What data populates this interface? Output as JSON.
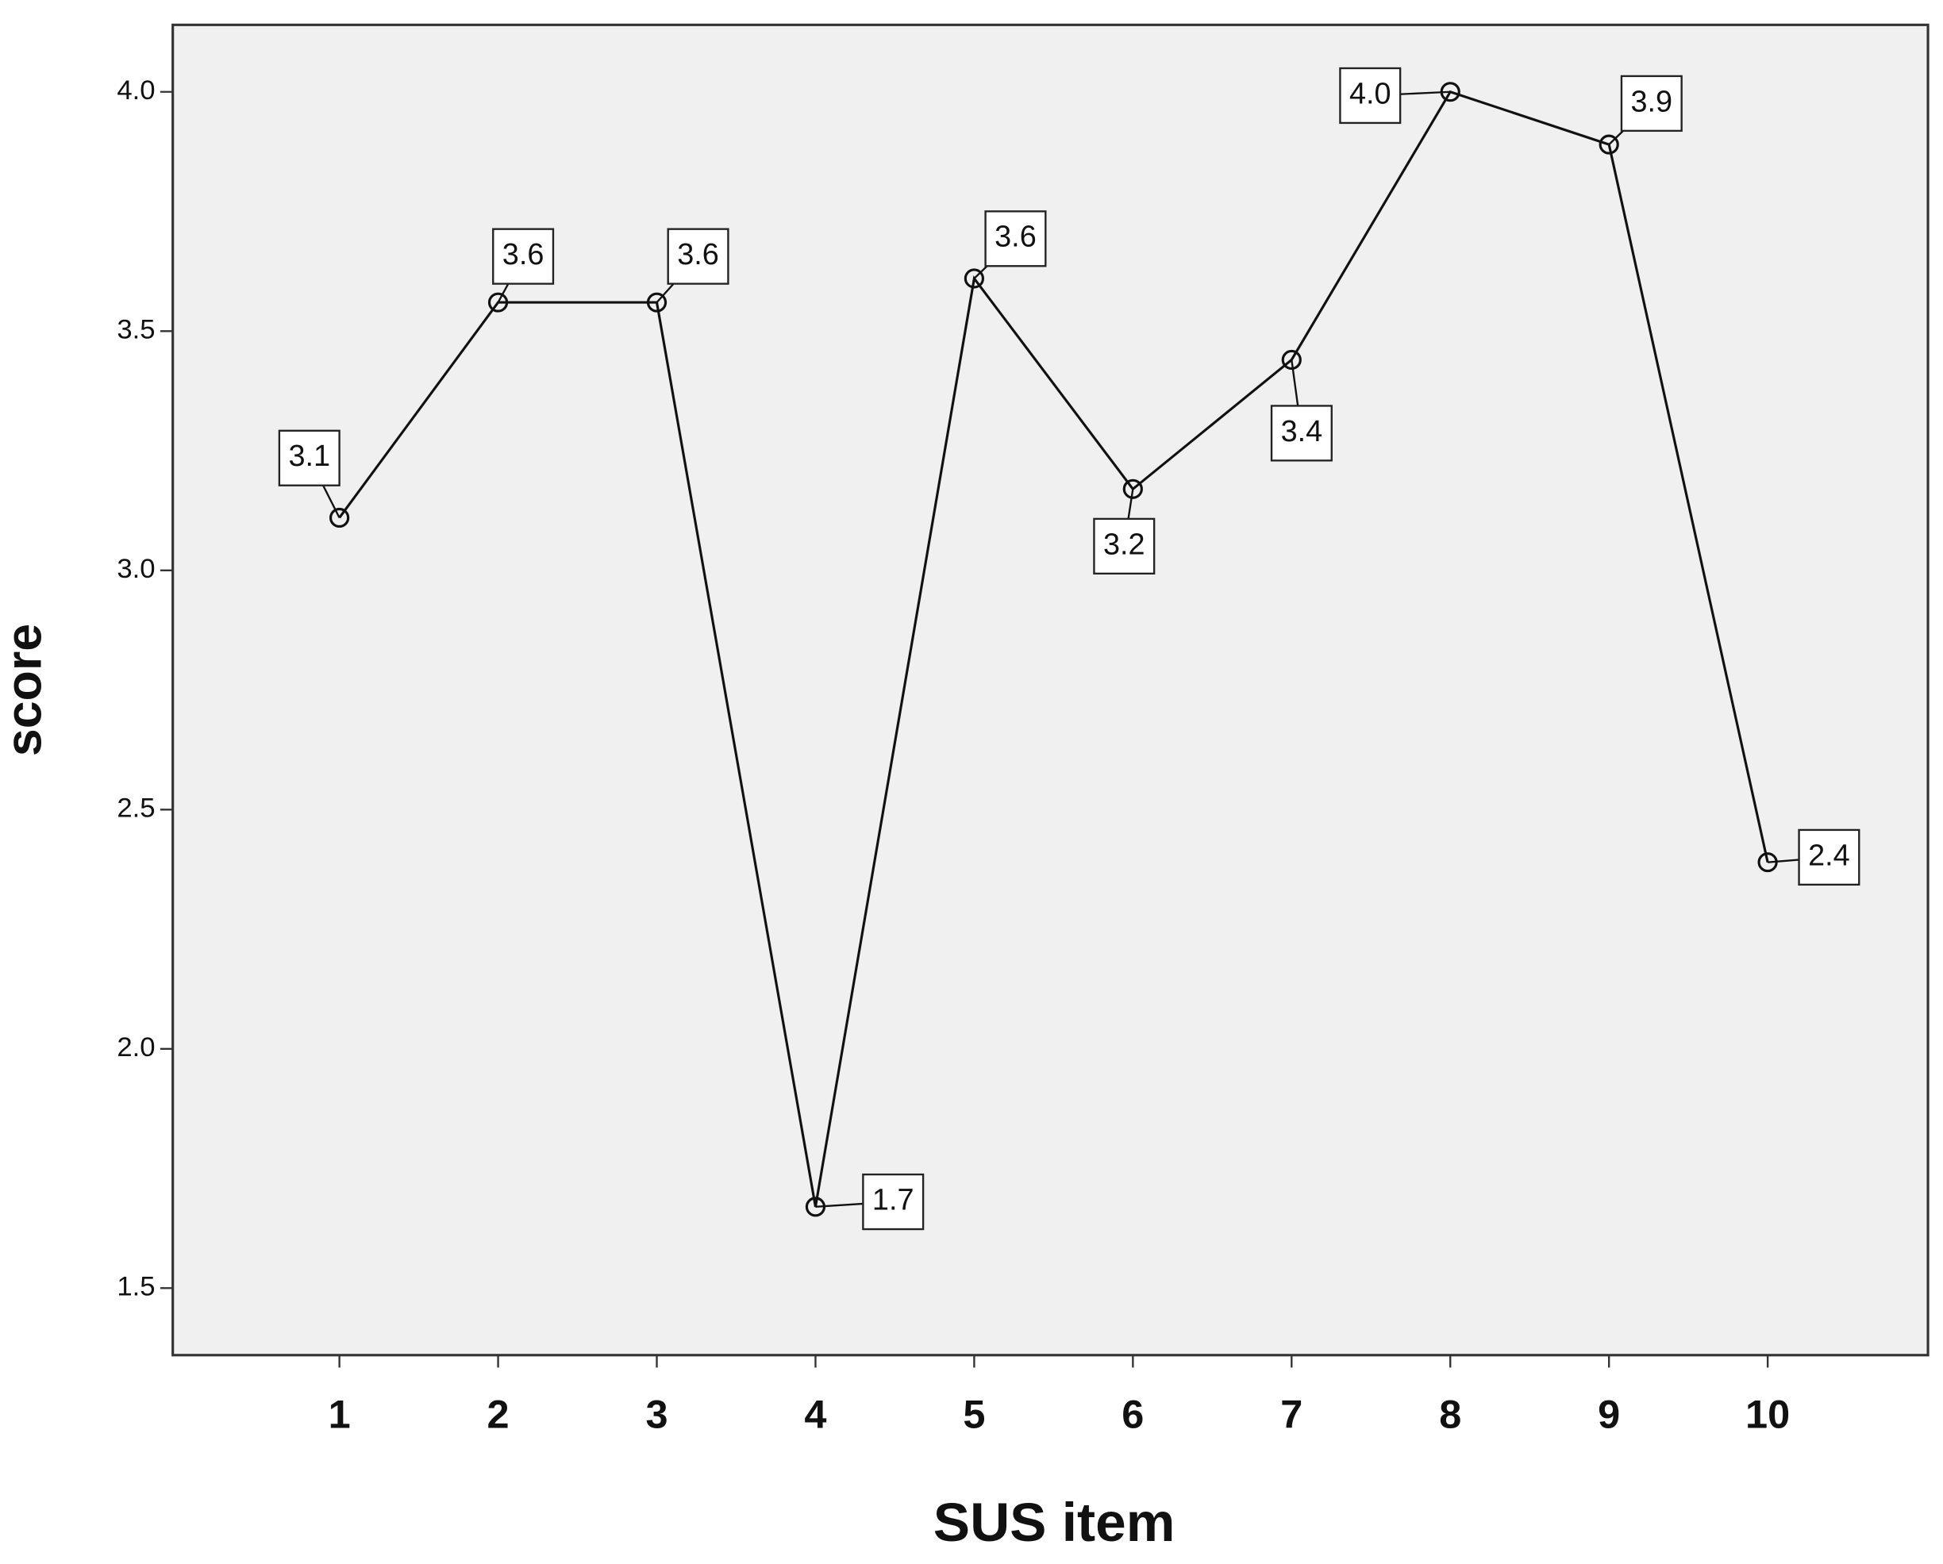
{
  "chart_data": {
    "type": "line",
    "x_label": "SUS item",
    "y_label": "score",
    "categories": [
      "1",
      "2",
      "3",
      "4",
      "5",
      "6",
      "7",
      "8",
      "9",
      "10"
    ],
    "values": [
      3.11,
      3.56,
      3.56,
      1.67,
      3.61,
      3.17,
      3.44,
      4.0,
      3.89,
      2.39
    ],
    "value_labels": [
      "3.1",
      "3.6",
      "3.6",
      "1.7",
      "3.6",
      "3.2",
      "3.4",
      "4.0",
      "3.9",
      "2.4"
    ],
    "color": "#111111",
    "background": "#f0f0f0",
    "ylim": [
      1.36,
      4.14
    ],
    "yticks": [
      1.5,
      {
        "value": 2,
        "label": "2.0"
      },
      2.5,
      {
        "value": 3,
        "label": "3.0"
      },
      3.5,
      {
        "value": 4,
        "label": "4.0"
      }
    ]
  }
}
